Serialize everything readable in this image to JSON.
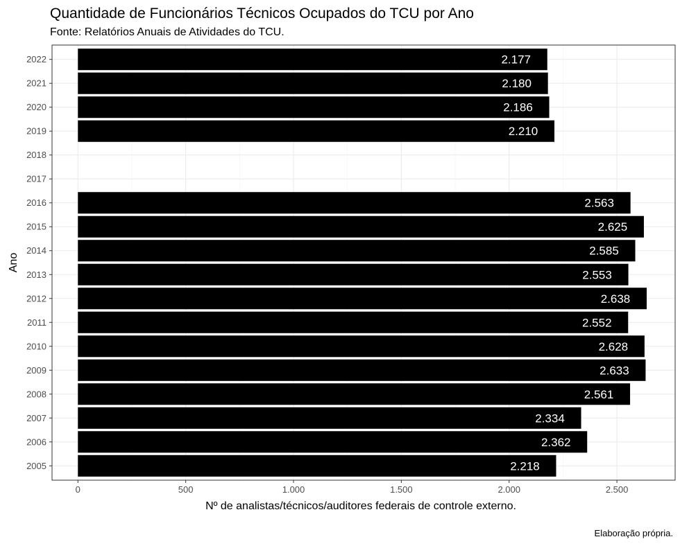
{
  "chart_data": {
    "type": "bar",
    "orientation": "horizontal",
    "title": "Quantidade de Funcionários Técnicos Ocupados do TCU por Ano",
    "subtitle": "Fonte: Relatórios Anuais de Atividades do TCU.",
    "caption": "Elaboração própria.",
    "xlabel": "Nº de analistas/técnicos/auditores federais de controle externo.",
    "ylabel": "Ano",
    "categories": [
      "2005",
      "2006",
      "2007",
      "2008",
      "2009",
      "2010",
      "2011",
      "2012",
      "2013",
      "2014",
      "2015",
      "2016",
      "2017",
      "2018",
      "2019",
      "2020",
      "2021",
      "2022"
    ],
    "values": [
      2218,
      2362,
      2334,
      2561,
      2633,
      2628,
      2552,
      2638,
      2553,
      2585,
      2625,
      2563,
      null,
      null,
      2210,
      2186,
      2180,
      2177
    ],
    "data_labels": [
      "2.218",
      "2.362",
      "2.334",
      "2.561",
      "2.633",
      "2.628",
      "2.552",
      "2.638",
      "2.553",
      "2.585",
      "2.625",
      "2.563",
      "",
      "",
      "2.210",
      "2.186",
      "2.180",
      "2.177"
    ],
    "x_ticks": [
      0,
      500,
      1000,
      1500,
      2000,
      2500
    ],
    "x_tick_labels": [
      "0",
      "500",
      "1.000",
      "1.500",
      "2.000",
      "2.500"
    ],
    "xlim": [
      -120,
      2770
    ],
    "bar_color": "#000000",
    "label_color": "#ffffff",
    "grid": true,
    "legend": "none"
  }
}
